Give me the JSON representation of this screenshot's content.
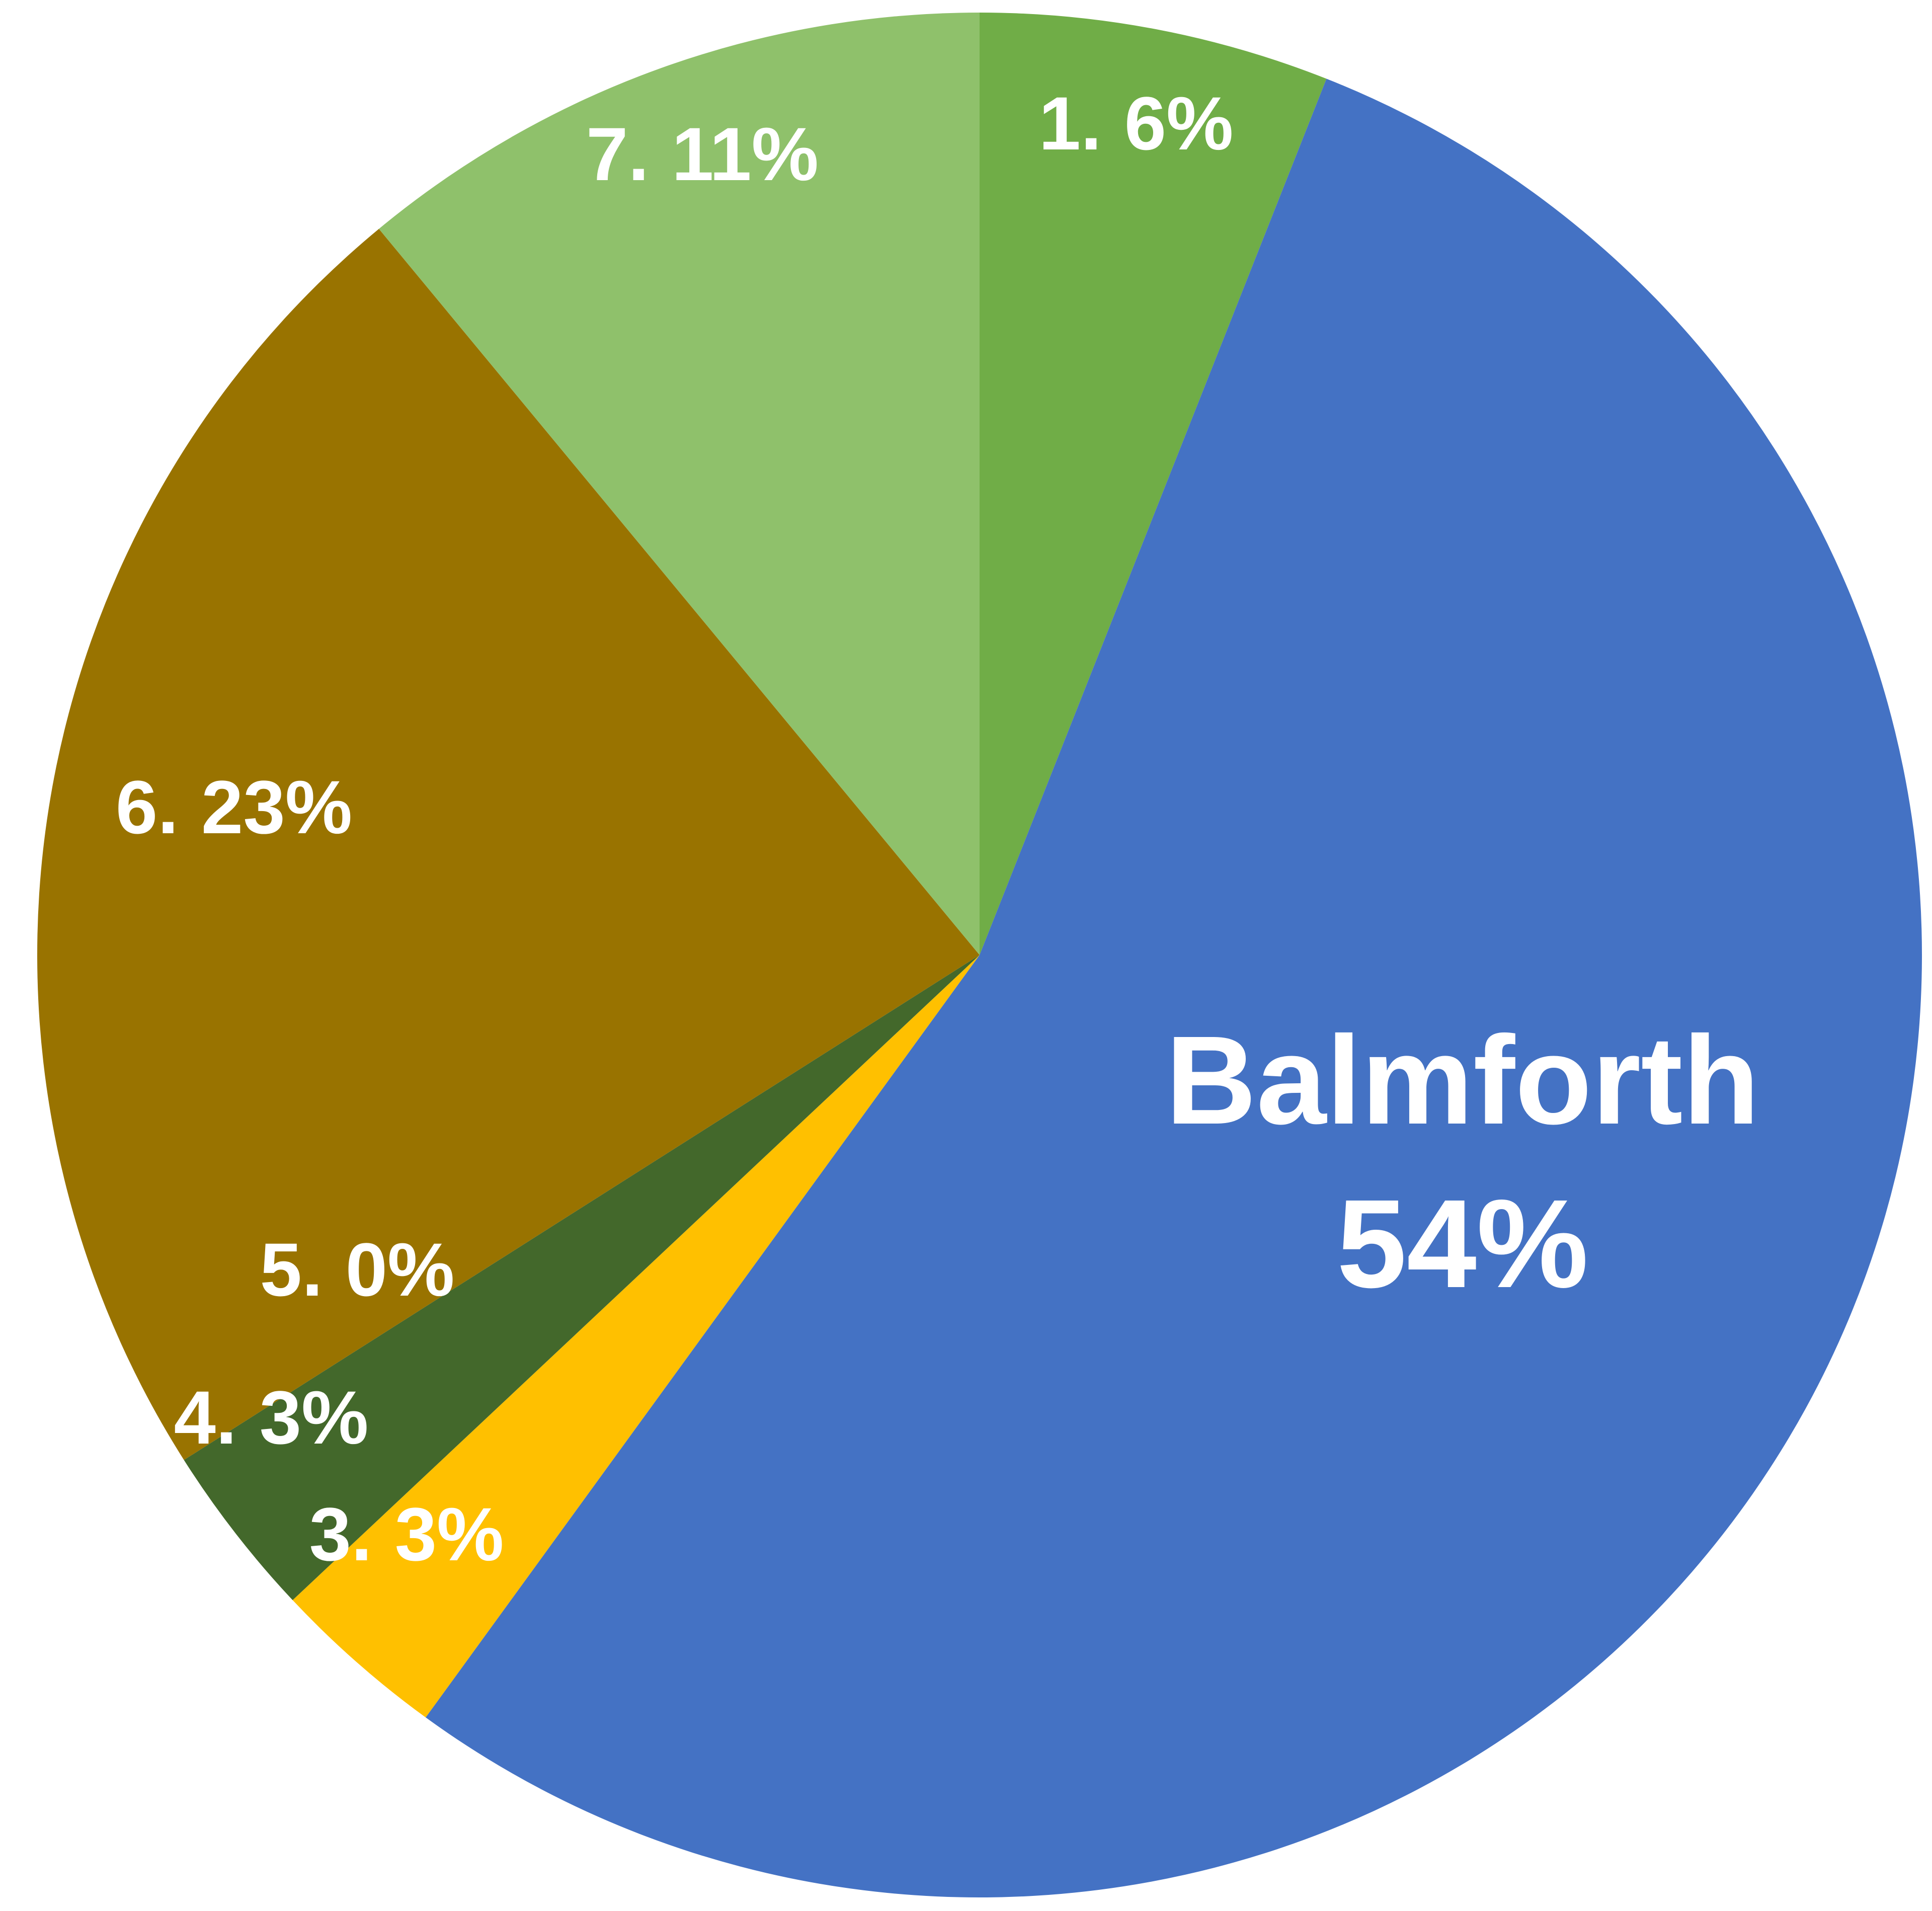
{
  "chart_data": {
    "type": "pie",
    "categories": [
      "1.",
      "Balmforth",
      "3.",
      "4.",
      "5.",
      "6.",
      "7."
    ],
    "values": [
      6,
      54,
      3,
      3,
      0,
      23,
      11
    ],
    "value_labels": [
      "6%",
      "54%",
      "3%",
      "3%",
      "0%",
      "23%",
      "11%"
    ],
    "colors": [
      "#70ad47",
      "#4472c4",
      "#ffc000",
      "#43682b",
      "#264478",
      "#997300",
      "#8fc16b"
    ]
  }
}
